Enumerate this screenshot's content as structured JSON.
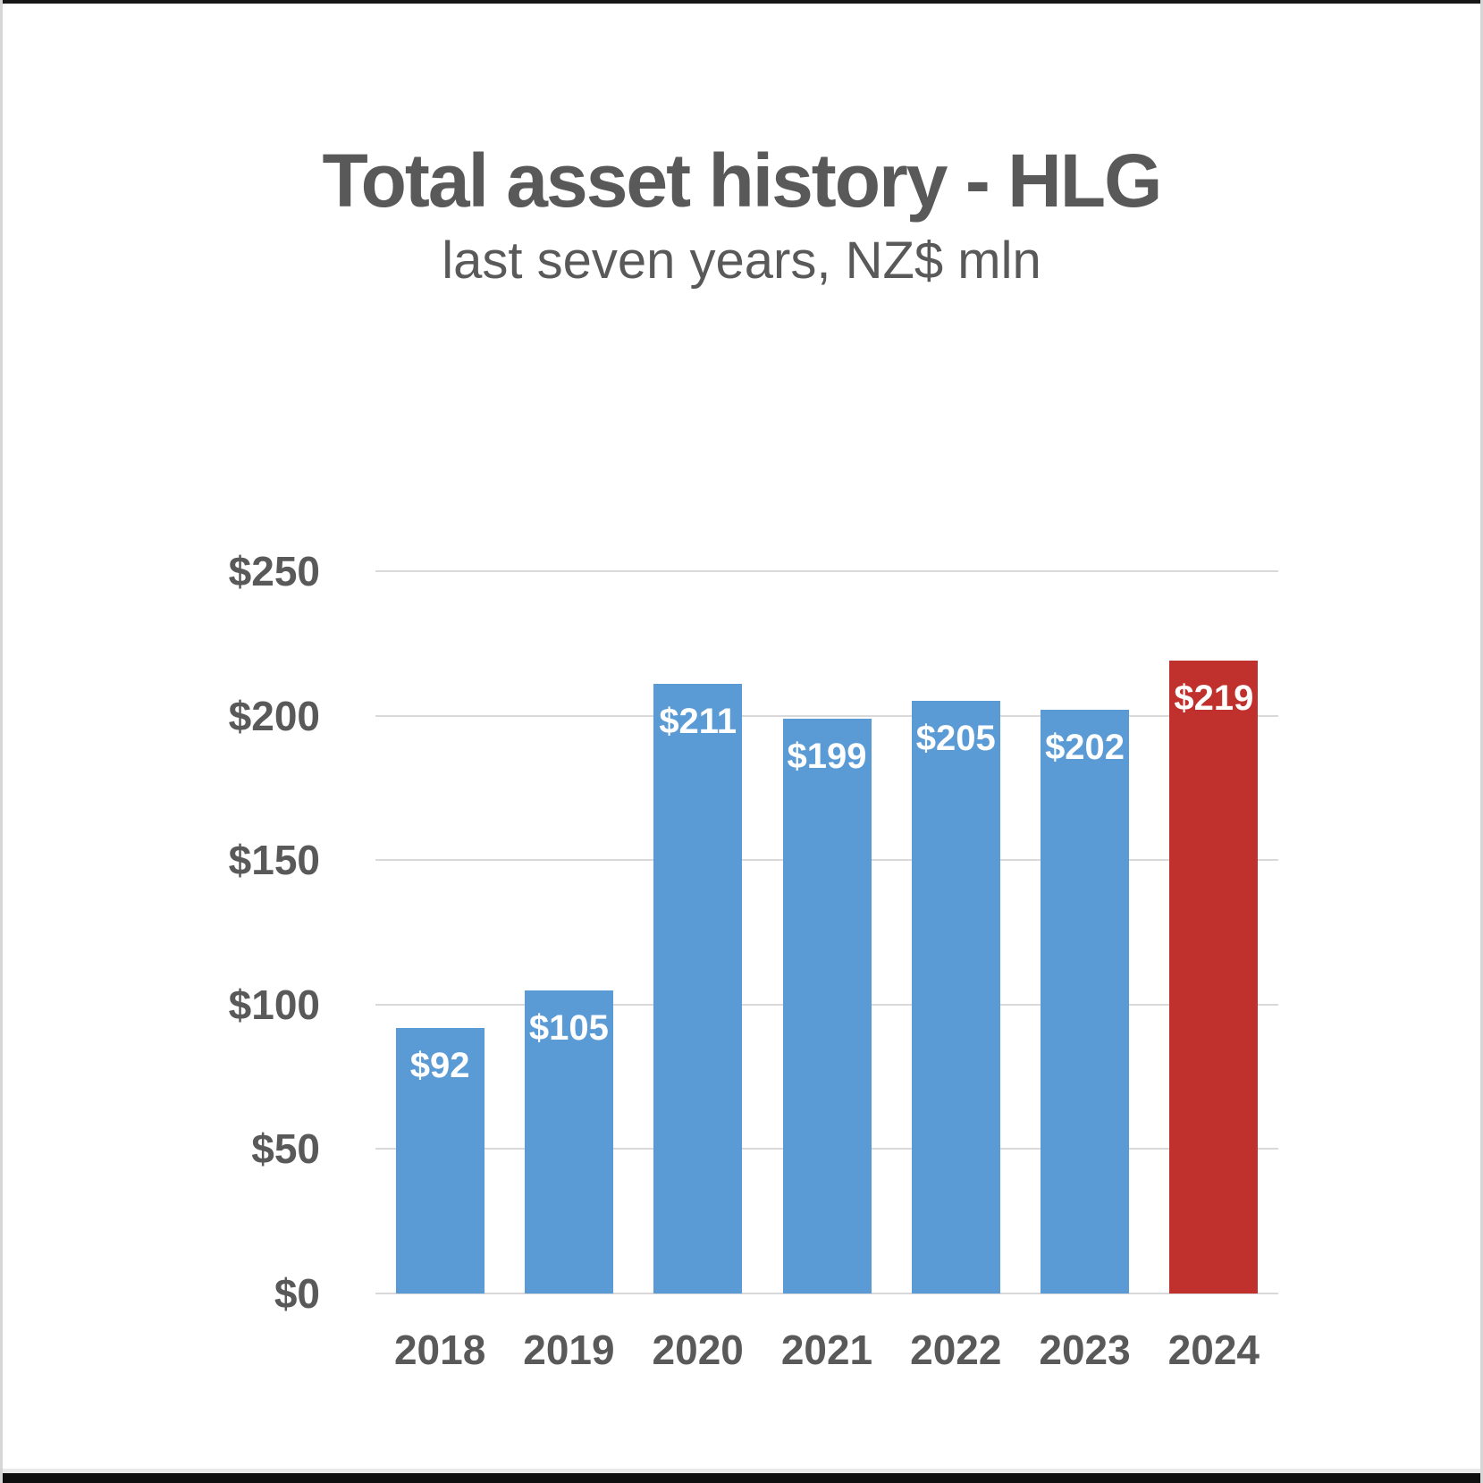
{
  "chart_data": {
    "type": "bar",
    "title": "Total asset history - HLG",
    "subtitle": "last seven years, NZ$ mln",
    "categories": [
      "2018",
      "2019",
      "2020",
      "2021",
      "2022",
      "2023",
      "2024"
    ],
    "values": [
      92,
      105,
      211,
      199,
      205,
      202,
      219
    ],
    "data_labels": [
      "$92",
      "$105",
      "$211",
      "$199",
      "$205",
      "$202",
      "$219"
    ],
    "highlighted_category": "2024",
    "xlabel": "",
    "ylabel": "",
    "ylim": [
      0,
      250
    ],
    "ytick_step": 50,
    "ytick_labels": [
      "$0",
      "$50",
      "$100",
      "$150",
      "$200",
      "$250"
    ],
    "grid": true,
    "legend": "none",
    "colors": {
      "bar": "#5B9BD5",
      "highlight": "#C0302D",
      "gridline": "#D9D9D9",
      "axis_text": "#595959",
      "title_text": "#595959",
      "data_label_text": "#FFFFFF"
    }
  }
}
